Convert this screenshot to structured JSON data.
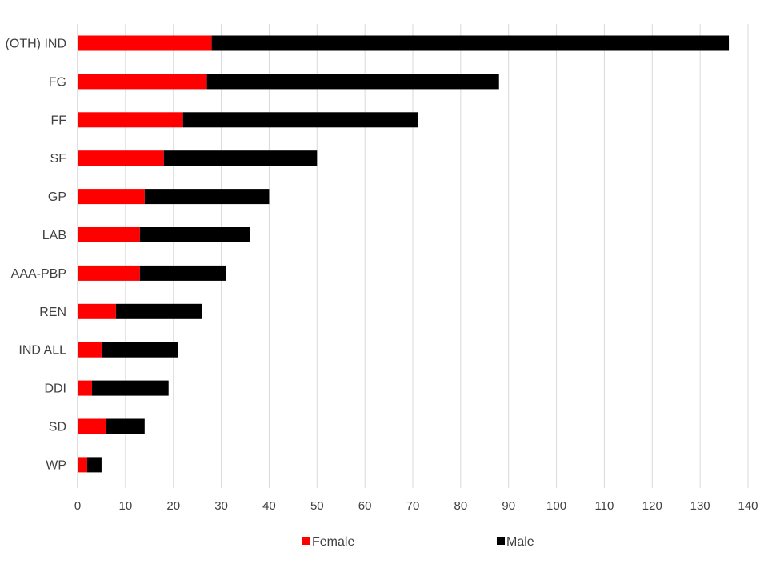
{
  "chart_data": {
    "type": "bar",
    "orientation": "horizontal",
    "stacked": true,
    "categories": [
      "(OTH) IND",
      "FG",
      "FF",
      "SF",
      "GP",
      "LAB",
      "AAA-PBP",
      "REN",
      "IND ALL",
      "DDI",
      "SD",
      "WP"
    ],
    "series": [
      {
        "name": "Female",
        "color": "#ff0000",
        "values": [
          28,
          27,
          22,
          18,
          14,
          13,
          13,
          8,
          5,
          3,
          6,
          2
        ]
      },
      {
        "name": "Male",
        "color": "#000000",
        "values": [
          108,
          61,
          49,
          32,
          26,
          23,
          18,
          18,
          16,
          16,
          8,
          3
        ]
      }
    ],
    "xlim": [
      0,
      140
    ],
    "xticks": [
      0,
      10,
      20,
      30,
      40,
      50,
      60,
      70,
      80,
      90,
      100,
      110,
      120,
      130,
      140
    ],
    "grid": true,
    "legend_position": "bottom",
    "title": "",
    "xlabel": "",
    "ylabel": ""
  }
}
